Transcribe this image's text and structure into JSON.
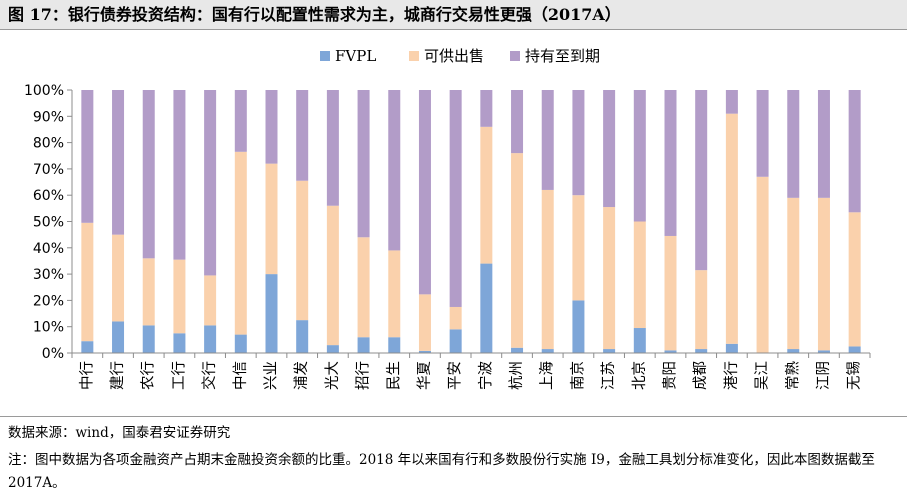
{
  "title": "图 17：银行债券投资结构：国有行以配置性需求为主，城商行交易性更强（2017A）",
  "chart_data": {
    "type": "bar",
    "stacked": true,
    "percent": true,
    "categories": [
      "中行",
      "建行",
      "农行",
      "工行",
      "交行",
      "中信",
      "兴业",
      "浦发",
      "光大",
      "招行",
      "民生",
      "华夏",
      "平安",
      "宁波",
      "杭州",
      "上海",
      "南京",
      "江苏",
      "北京",
      "贵阳",
      "成都",
      "港行",
      "吴江",
      "常熟",
      "江阴",
      "无锡"
    ],
    "series": [
      {
        "name": "FVPL",
        "color": "#7ea6d8",
        "values": [
          4.5,
          12,
          10.5,
          7.5,
          10.5,
          7,
          30,
          12.5,
          3,
          6,
          6,
          0.8,
          9,
          34,
          2,
          1.5,
          20,
          1.5,
          9.5,
          1,
          1.5,
          3.5,
          0,
          1.5,
          1,
          2.5
        ]
      },
      {
        "name": "可供出售",
        "color": "#fad1ac",
        "values": [
          45,
          33,
          25.5,
          28,
          19,
          69.5,
          42,
          53,
          53,
          38,
          33,
          21.5,
          8.5,
          52,
          74,
          60.5,
          40,
          54,
          40.5,
          43.5,
          30,
          87.5,
          67,
          57.5,
          58,
          51
        ]
      },
      {
        "name": "持有至到期",
        "color": "#b29cc8",
        "values": [
          50.5,
          55,
          64,
          64.5,
          70.5,
          23.5,
          28,
          34.5,
          44,
          56,
          61,
          77.7,
          82.5,
          14,
          24,
          38,
          40,
          44.5,
          50,
          55.5,
          68.5,
          9,
          33,
          41,
          41,
          46.5
        ]
      }
    ],
    "ylim": [
      0,
      100
    ],
    "yticks": [
      "0%",
      "10%",
      "20%",
      "30%",
      "40%",
      "50%",
      "60%",
      "70%",
      "80%",
      "90%",
      "100%"
    ],
    "legend_position": "top-center"
  },
  "source_text": "数据来源：wind，国泰君安证券研究",
  "note_text": "注：图中数据为各项金融资产占期末金融投资余额的比重。2018 年以来国有行和多数股份行实施 I9，金融工具划分标准变化，因此本图数据截至 2017A。"
}
